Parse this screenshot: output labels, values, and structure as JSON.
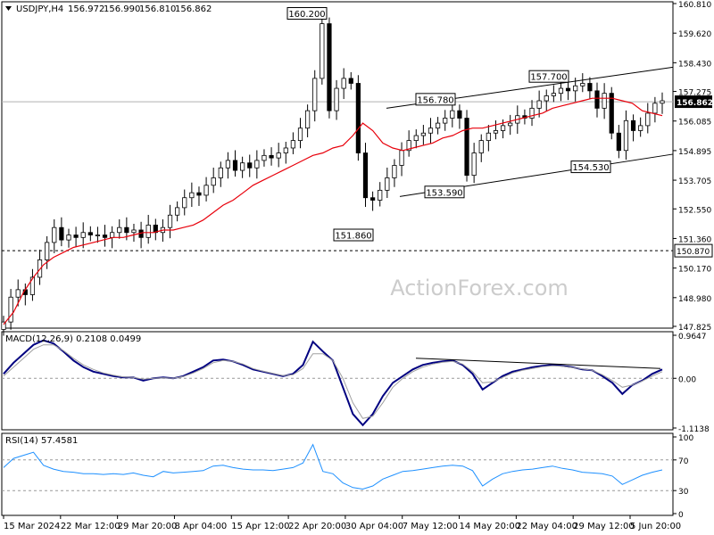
{
  "chart_data": [
    {
      "type": "candlestick",
      "title": "USDJPY,H4",
      "ohlc": {
        "open": "156.972",
        "high": "156.990",
        "low": "156.810",
        "close": "156.862"
      },
      "ylim": [
        147.825,
        160.81
      ],
      "y_ticks": [
        "160.810",
        "159.620",
        "158.430",
        "157.275",
        "156.085",
        "154.895",
        "153.705",
        "152.550",
        "151.360",
        "150.170",
        "148.980",
        "147.825"
      ],
      "series": [
        {
          "name": "price",
          "style": "candles",
          "color": "#000000",
          "values": [
            148.0,
            149.0,
            149.3,
            149.1,
            149.8,
            150.5,
            151.2,
            151.8,
            151.3,
            151.5,
            151.4,
            151.6,
            151.5,
            151.5,
            151.4,
            151.6,
            151.8,
            151.6,
            151.7,
            151.4,
            151.9,
            151.6,
            151.8,
            152.3,
            152.6,
            153.0,
            153.2,
            153.1,
            153.5,
            153.8,
            154.2,
            154.5,
            154.1,
            154.4,
            154.2,
            154.5,
            154.7,
            154.6,
            154.8,
            155.0,
            155.3,
            155.8,
            156.5,
            157.8,
            160.0,
            156.5,
            157.4,
            157.8,
            157.6,
            154.8,
            153.0,
            152.9,
            153.3,
            153.8,
            154.3,
            154.9,
            155.3,
            155.5,
            155.6,
            155.8,
            156.0,
            156.2,
            156.5,
            156.2,
            153.9,
            154.8,
            155.3,
            155.6,
            155.7,
            155.9,
            156.0,
            156.3,
            156.2,
            156.6,
            156.9,
            157.1,
            157.2,
            157.4,
            157.3,
            157.5,
            157.6,
            157.3,
            156.6,
            157.2,
            155.6,
            154.9,
            156.1,
            155.7,
            155.9,
            156.4,
            156.8,
            156.9
          ],
          "x_range": [
            0,
            91
          ]
        },
        {
          "name": "MA",
          "style": "line",
          "color": "#e8000b",
          "values": [
            147.9,
            148.4,
            149.2,
            149.8,
            150.3,
            150.6,
            150.8,
            151.0,
            151.1,
            151.2,
            151.3,
            151.4,
            151.4,
            151.5,
            151.6,
            151.6,
            151.7,
            151.7,
            151.8,
            151.9,
            152.1,
            152.4,
            152.7,
            152.9,
            153.2,
            153.5,
            153.7,
            153.9,
            154.1,
            154.3,
            154.5,
            154.7,
            154.8,
            155.0,
            155.1,
            155.5,
            156.0,
            155.7,
            155.2,
            155.0,
            154.9,
            155.0,
            155.1,
            155.2,
            155.4,
            155.5,
            155.7,
            155.8,
            155.8,
            155.9,
            156.0,
            156.1,
            156.2,
            156.3,
            156.4,
            156.6,
            156.7,
            156.8,
            156.9,
            157.0,
            157.0,
            157.0,
            156.9,
            156.8,
            156.5,
            156.4,
            156.3
          ],
          "x_range": [
            0,
            91
          ]
        }
      ],
      "annotations": [
        "160.200",
        "151.860",
        "156.780",
        "153.590",
        "157.700",
        "154.530"
      ],
      "markers": {
        "current_price": "156.862",
        "support": "150.870"
      },
      "watermark": "ActionForex.com",
      "colors": {
        "current_box": "#000000",
        "support_box": "#ffffff",
        "ma": "#e8000b",
        "channel": "#000000"
      }
    },
    {
      "type": "line",
      "title": "MACD(12,26,9) 0.2108 0.0499",
      "ylim": [
        -1.1138,
        0.9647
      ],
      "y_ticks": [
        "0.9647",
        "0.00",
        "-1.1138"
      ],
      "series": [
        {
          "name": "MACD",
          "color": "#000080",
          "values": [
            0.1,
            0.35,
            0.55,
            0.75,
            0.85,
            0.78,
            0.6,
            0.4,
            0.25,
            0.15,
            0.1,
            0.05,
            0.02,
            0.02,
            -0.05,
            0.0,
            0.02,
            0.0,
            0.05,
            0.15,
            0.25,
            0.4,
            0.42,
            0.38,
            0.3,
            0.2,
            0.15,
            0.1,
            0.05,
            0.1,
            0.3,
            0.82,
            0.6,
            0.4,
            -0.2,
            -0.8,
            -1.05,
            -0.8,
            -0.4,
            -0.1,
            0.05,
            0.2,
            0.3,
            0.35,
            0.38,
            0.4,
            0.3,
            0.1,
            -0.25,
            -0.1,
            0.05,
            0.15,
            0.2,
            0.25,
            0.28,
            0.3,
            0.28,
            0.25,
            0.2,
            0.18,
            0.05,
            -0.1,
            -0.35,
            -0.15,
            -0.05,
            0.1,
            0.2
          ]
        },
        {
          "name": "Signal",
          "color": "#a0a0a0",
          "values": [
            0.05,
            0.25,
            0.45,
            0.65,
            0.75,
            0.75,
            0.62,
            0.45,
            0.3,
            0.2,
            0.12,
            0.07,
            0.03,
            0.02,
            -0.02,
            0.0,
            0.01,
            0.0,
            0.04,
            0.12,
            0.22,
            0.35,
            0.4,
            0.38,
            0.32,
            0.22,
            0.16,
            0.11,
            0.06,
            0.08,
            0.22,
            0.55,
            0.55,
            0.4,
            0.0,
            -0.55,
            -0.9,
            -0.85,
            -0.55,
            -0.2,
            0.0,
            0.15,
            0.25,
            0.32,
            0.36,
            0.38,
            0.32,
            0.15,
            -0.1,
            -0.08,
            0.02,
            0.12,
            0.18,
            0.22,
            0.26,
            0.28,
            0.27,
            0.24,
            0.21,
            0.18,
            0.08,
            -0.05,
            -0.2,
            -0.15,
            -0.06,
            0.05,
            0.15
          ]
        }
      ]
    },
    {
      "type": "line",
      "title": "RSI(14) 57.4581",
      "ylim": [
        0,
        100
      ],
      "y_ticks": [
        "100",
        "70",
        "30",
        "0"
      ],
      "series": [
        {
          "name": "RSI",
          "color": "#1e90ff",
          "values": [
            60,
            72,
            76,
            80,
            63,
            58,
            55,
            54,
            52,
            52,
            51,
            52,
            51,
            53,
            50,
            48,
            55,
            53,
            54,
            55,
            56,
            62,
            63,
            60,
            58,
            57,
            57,
            56,
            58,
            60,
            66,
            90,
            55,
            52,
            40,
            34,
            32,
            36,
            45,
            50,
            55,
            56,
            58,
            60,
            62,
            63,
            62,
            56,
            36,
            45,
            52,
            55,
            57,
            58,
            60,
            62,
            59,
            57,
            54,
            53,
            52,
            49,
            38,
            44,
            50,
            54,
            57
          ]
        }
      ]
    }
  ],
  "x_axis": {
    "labels": [
      "15 Mar 2024",
      "22 Mar 12:00",
      "29 Mar 20:00",
      "8 Apr 04:00",
      "15 Apr 12:00",
      "22 Apr 20:00",
      "30 Apr 04:00",
      "7 May 12:00",
      "14 May 20:00",
      "22 May 04:00",
      "29 May 12:00",
      "5 Jun 20:00"
    ]
  }
}
